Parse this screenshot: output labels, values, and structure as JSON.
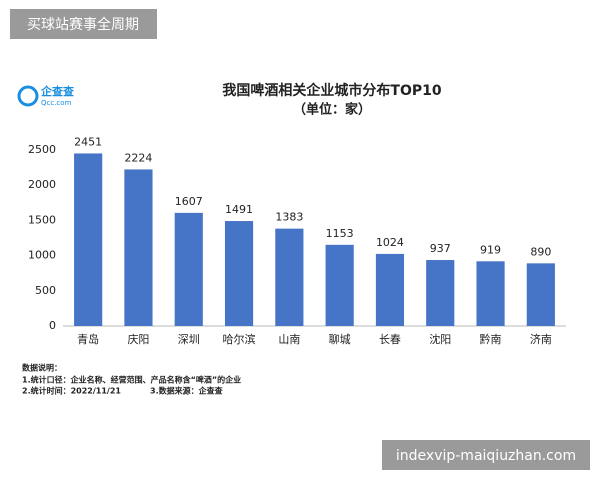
{
  "chart_data": {
    "type": "bar",
    "title": "我国啤酒相关企业城市分布TOP10",
    "subtitle": "（单位：家）",
    "categories": [
      "青岛",
      "庆阳",
      "深圳",
      "哈尔滨",
      "山南",
      "聊城",
      "长春",
      "沈阳",
      "黔南",
      "济南"
    ],
    "values": [
      2451,
      2224,
      1607,
      1491,
      1383,
      1153,
      1024,
      937,
      919,
      890
    ],
    "color": "#4674c6",
    "ylim": [
      0,
      2500
    ],
    "yticks": [
      0,
      500,
      1000,
      1500,
      2000,
      2500
    ],
    "grid": false
  },
  "watermark": "买球站赛事全周期",
  "site": "indexvip-maiqiuzhan.com",
  "logo": {
    "name": "企查查",
    "url": "Qcc.com"
  },
  "notes": [
    "数据说明：",
    "1.统计口径：企业名称、经营范围、产品名称含“啤酒”的企业",
    "2.统计时间：2022/11/21",
    "3.数据来源：企查查"
  ]
}
